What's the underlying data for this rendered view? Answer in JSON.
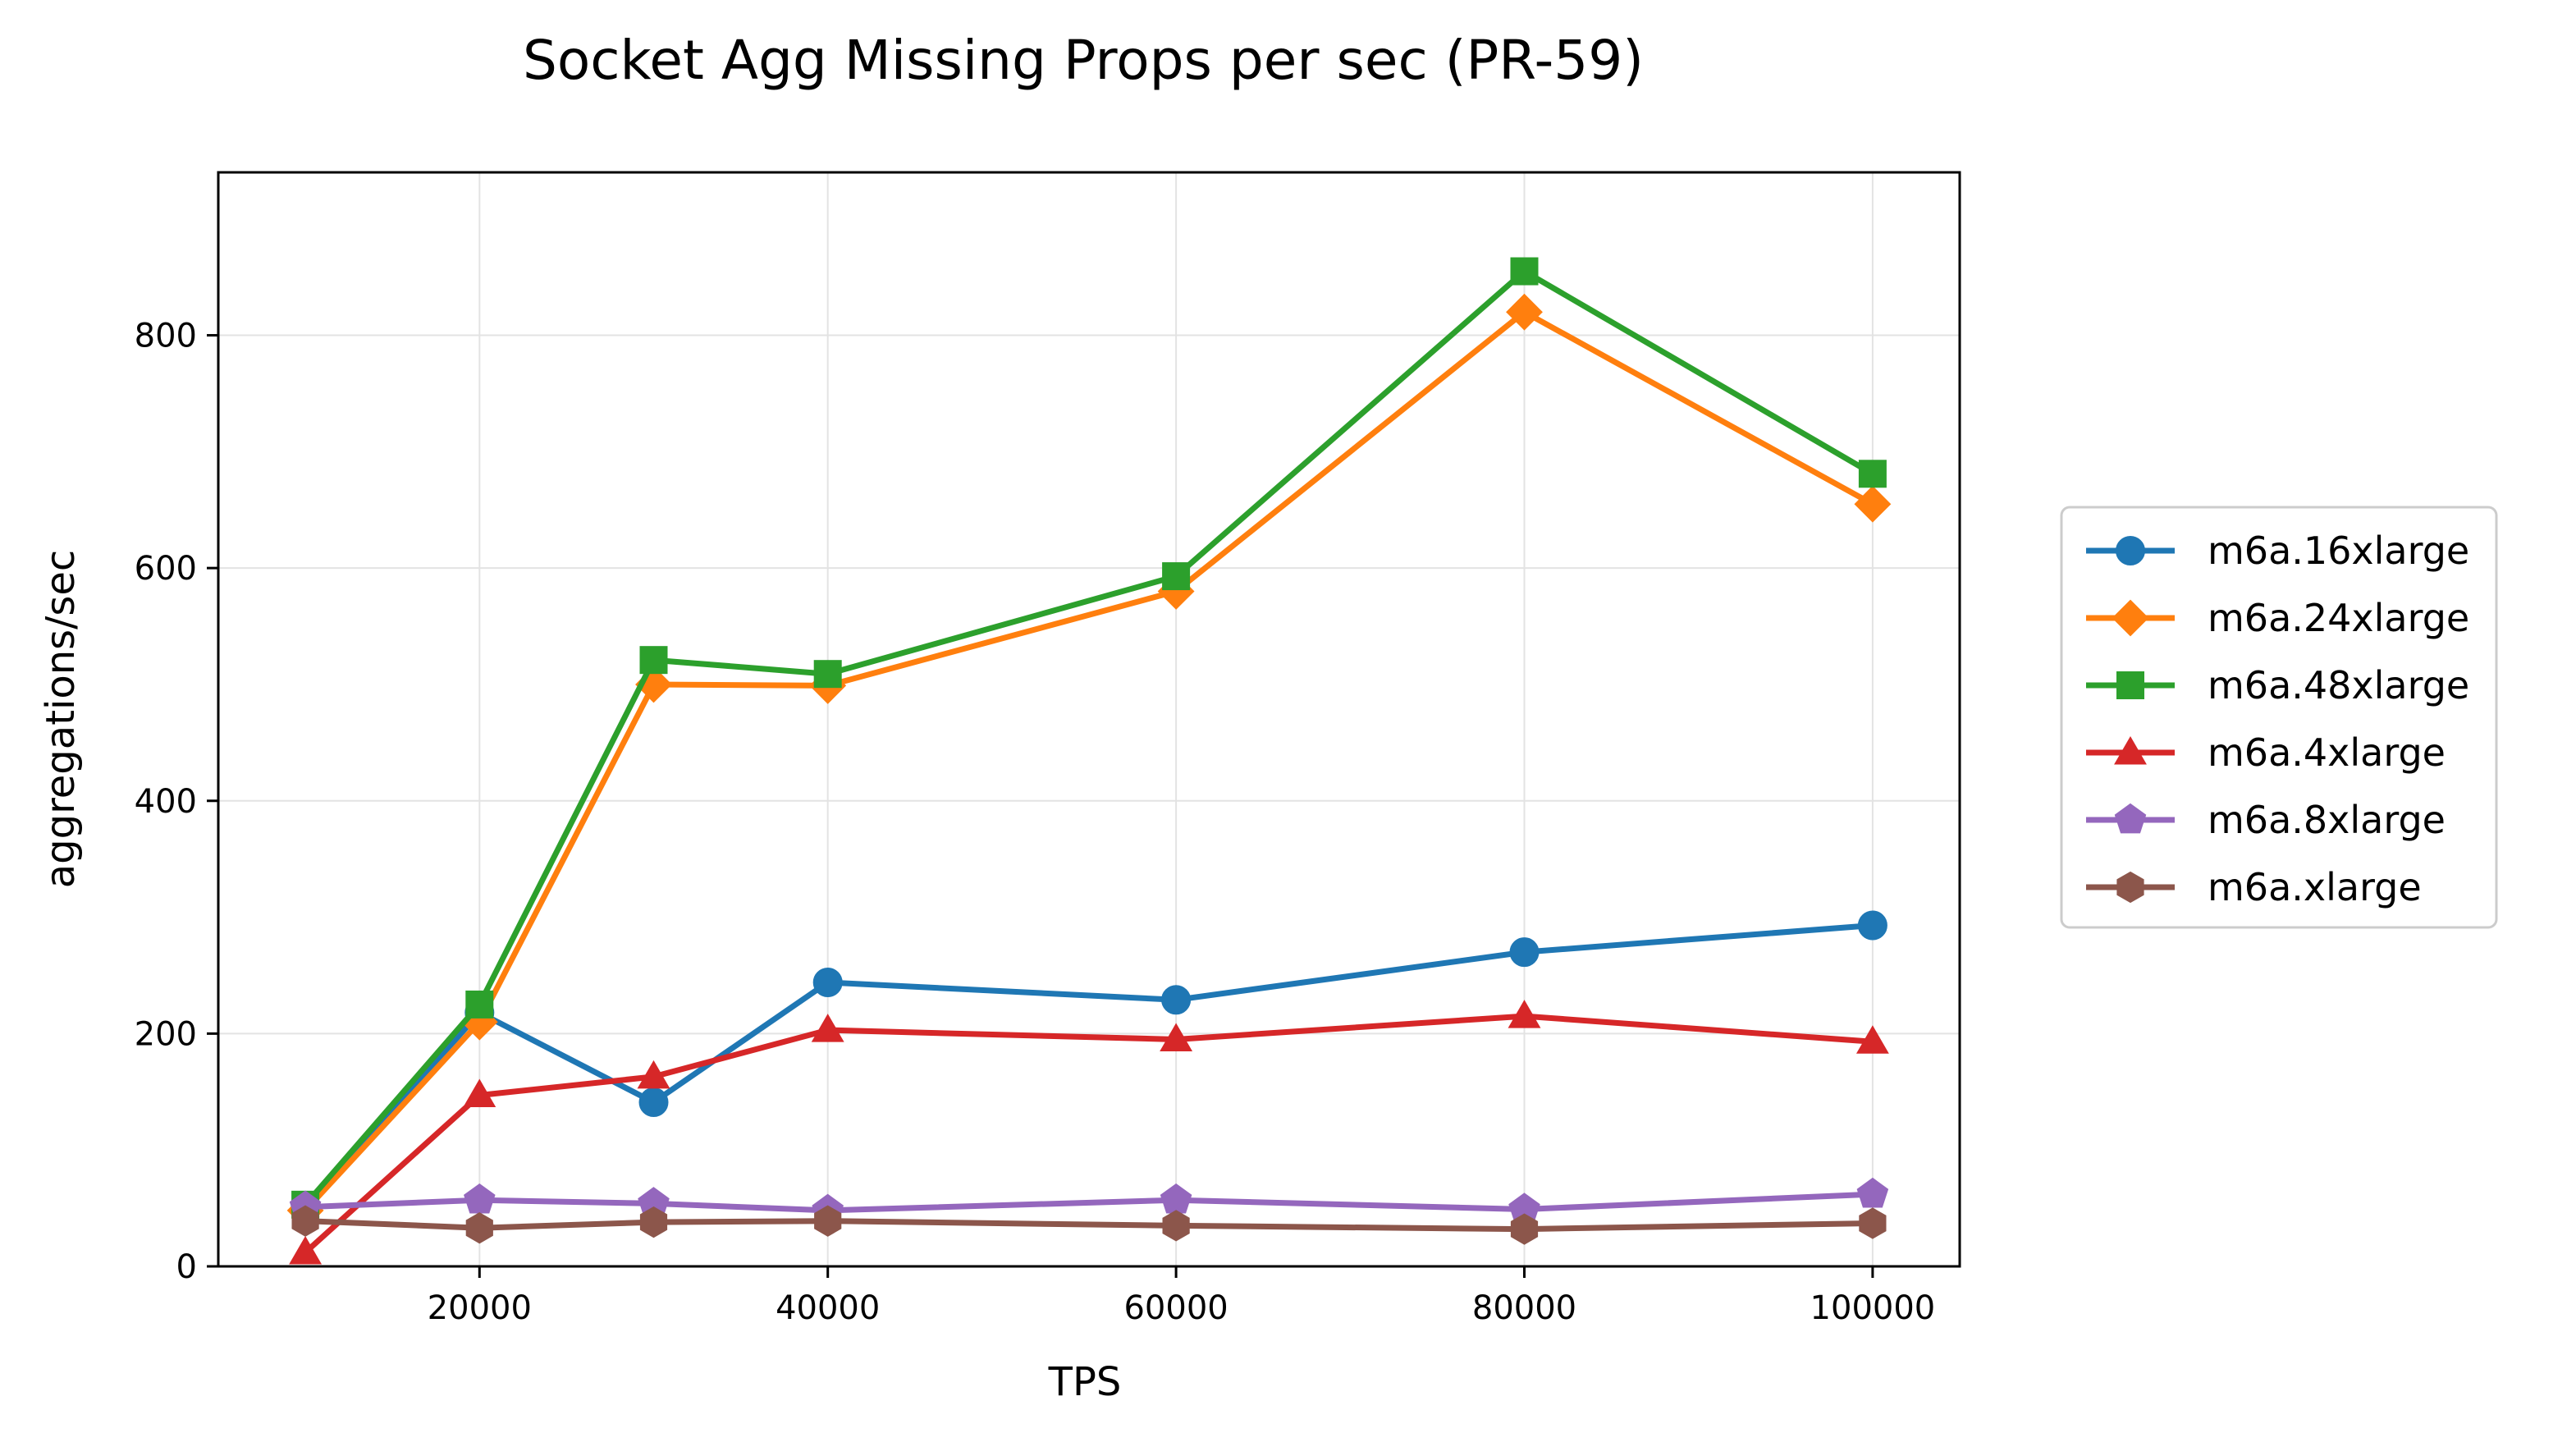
{
  "chart_data": {
    "type": "line",
    "title": "Socket Agg Missing Props per sec (PR-59)",
    "xlabel": "TPS",
    "ylabel": "aggregations/sec",
    "x": [
      10000,
      20000,
      30000,
      40000,
      60000,
      80000,
      100000
    ],
    "xlim": [
      5000,
      105000
    ],
    "ylim": [
      0,
      940
    ],
    "xticks": [
      20000,
      40000,
      60000,
      80000,
      100000
    ],
    "yticks": [
      0,
      200,
      400,
      600,
      800
    ],
    "grid": true,
    "legend_position": "right, outside plot",
    "series": [
      {
        "name": "m6a.16xlarge",
        "color": "#1f77b4",
        "marker": "circle",
        "values": [
          50,
          218,
          141,
          244,
          229,
          270,
          293
        ]
      },
      {
        "name": "m6a.24xlarge",
        "color": "#ff7f0e",
        "marker": "diamond",
        "values": [
          48,
          210,
          500,
          499,
          580,
          820,
          655
        ]
      },
      {
        "name": "m6a.48xlarge",
        "color": "#2ca02c",
        "marker": "square",
        "values": [
          53,
          225,
          521,
          509,
          593,
          855,
          681
        ]
      },
      {
        "name": "m6a.4xlarge",
        "color": "#d62728",
        "marker": "triangle",
        "values": [
          12,
          147,
          163,
          203,
          195,
          215,
          193
        ]
      },
      {
        "name": "m6a.8xlarge",
        "color": "#9467bd",
        "marker": "pentagon",
        "values": [
          51,
          57,
          54,
          48,
          57,
          49,
          62
        ]
      },
      {
        "name": "m6a.xlarge",
        "color": "#8c564b",
        "marker": "hexagon",
        "values": [
          39,
          33,
          38,
          39,
          35,
          32,
          37
        ]
      }
    ]
  }
}
